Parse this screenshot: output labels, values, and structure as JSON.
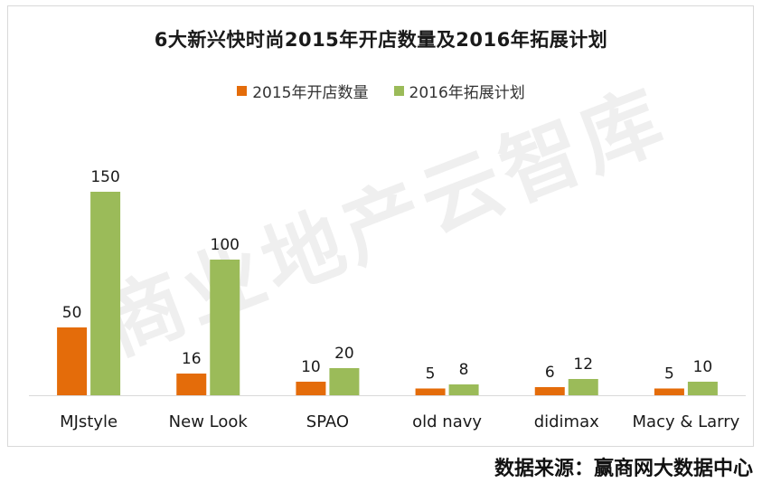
{
  "chart_data": {
    "type": "bar",
    "title": "6大新兴快时尚2015年开店数量及2016年拓展计划",
    "categories": [
      "MJstyle",
      "New Look",
      "SPAO",
      "old navy",
      "didimax",
      "Macy & Larry"
    ],
    "series": [
      {
        "name": "2015年开店数量",
        "values": [
          50,
          16,
          10,
          5,
          6,
          5
        ],
        "color": "#e46c0a"
      },
      {
        "name": "2016年拓展计划",
        "values": [
          150,
          100,
          20,
          8,
          12,
          10
        ],
        "color": "#9bbb59"
      }
    ],
    "ylim": [
      0,
      150
    ],
    "grid": false,
    "legend_position": "top-center",
    "data_labels": true
  },
  "watermark": "商业地产云智库",
  "source": "数据来源：赢商网大数据中心"
}
